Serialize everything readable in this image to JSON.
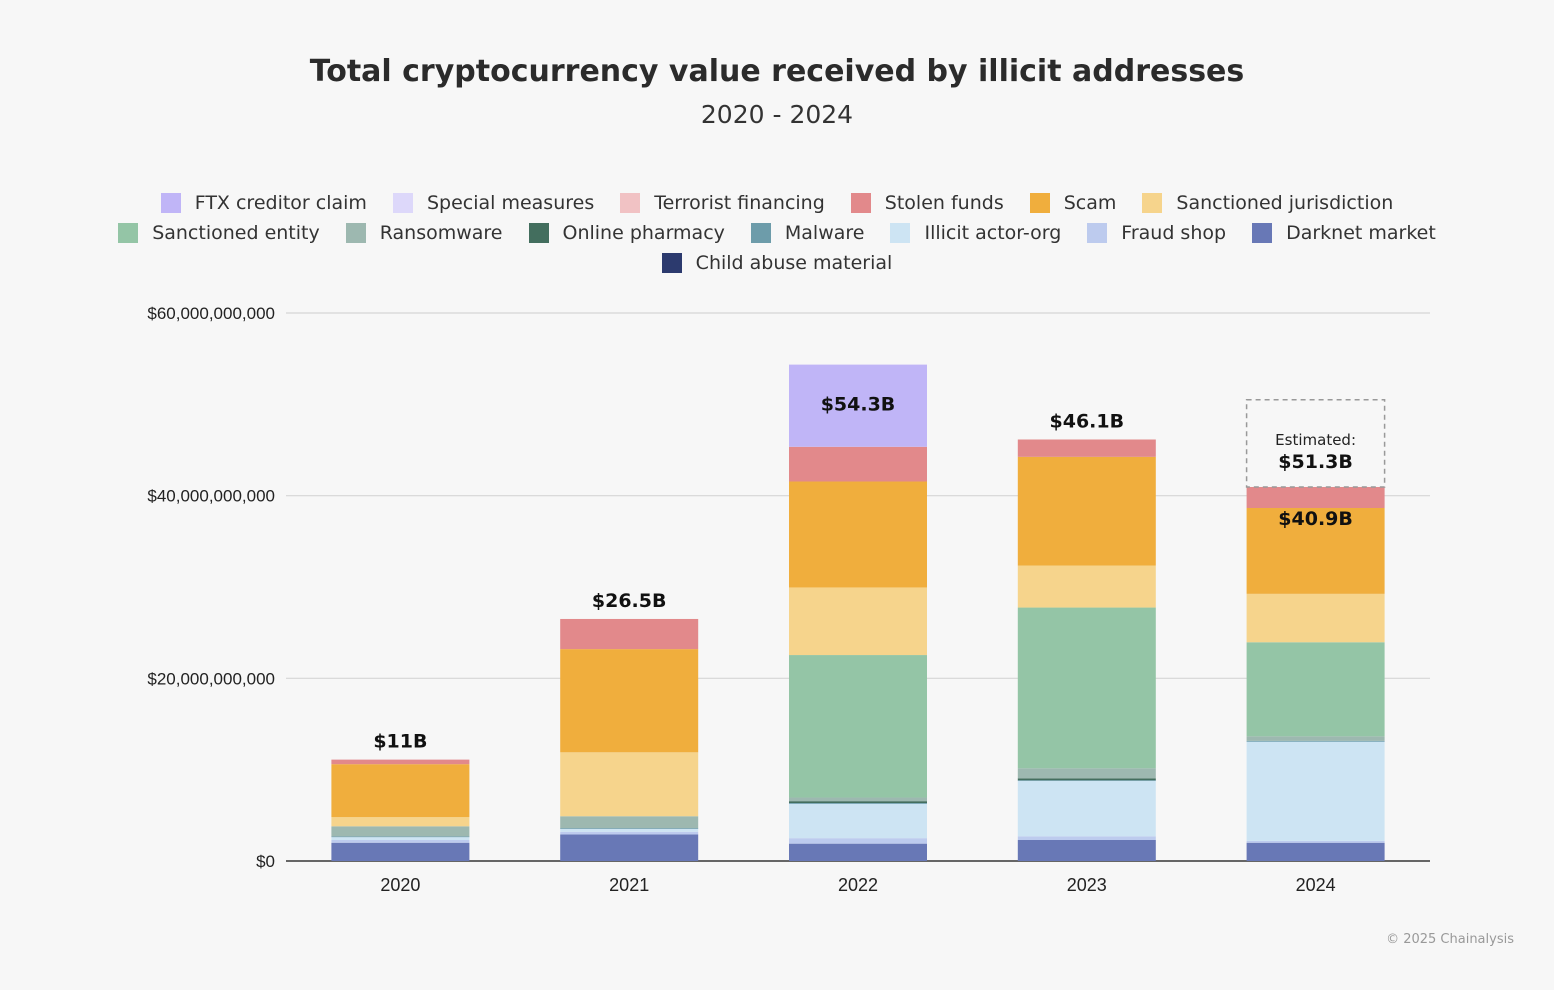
{
  "title": "Total cryptocurrency value received by illicit addresses",
  "subtitle": "2020 - 2024",
  "credit": "© 2025 Chainalysis",
  "chart_data": {
    "type": "bar",
    "stacked": true,
    "categories": [
      "2020",
      "2021",
      "2022",
      "2023",
      "2024"
    ],
    "ylim": [
      0,
      60000000000
    ],
    "yticks": [
      0,
      20000000000,
      40000000000,
      60000000000
    ],
    "ytick_labels": [
      "$0",
      "$20,000,000,000",
      "$40,000,000,000",
      "$60,000,000,000"
    ],
    "grid": true,
    "legend_position": "top",
    "series": [
      {
        "name": "Darknet market",
        "color": "#6878b6",
        "values": [
          2000000000.0,
          2900000000.0,
          1900000000.0,
          2300000000.0,
          2000000000.0
        ]
      },
      {
        "name": "Fraud shop",
        "color": "#bdcbee",
        "values": [
          300000000.0,
          300000000.0,
          600000000.0,
          400000000.0,
          200000000.0
        ]
      },
      {
        "name": "Illicit actor-org",
        "color": "#cde4f3",
        "values": [
          350000000.0,
          350000000.0,
          3800000000.0,
          6100000000.0,
          10900000000.0
        ]
      },
      {
        "name": "Malware",
        "color": "#6d9caa",
        "values": [
          50000000.0,
          50000000.0,
          50000000.0,
          50000000.0,
          50000000.0
        ]
      },
      {
        "name": "Online pharmacy",
        "color": "#436e5e",
        "values": [
          0,
          0,
          200000000.0,
          200000000.0,
          0
        ]
      },
      {
        "name": "Ransomware",
        "color": "#9db8b0",
        "values": [
          1100000000.0,
          1300000000.0,
          400000000.0,
          1100000000.0,
          500000000.0
        ]
      },
      {
        "name": "Sanctioned entity",
        "color": "#94c5a6",
        "values": [
          0,
          0,
          15600000000.0,
          17600000000.0,
          10300000000.0
        ]
      },
      {
        "name": "Sanctioned jurisdiction",
        "color": "#f6d48c",
        "values": [
          1000000000.0,
          7000000000.0,
          7400000000.0,
          4600000000.0,
          5300000000.0
        ]
      },
      {
        "name": "Scam",
        "color": "#f0ae3d",
        "values": [
          5800000000.0,
          11300000000.0,
          11600000000.0,
          11900000000.0,
          9400000000.0
        ]
      },
      {
        "name": "Stolen funds",
        "color": "#e2898b",
        "values": [
          500000000.0,
          3300000000.0,
          3800000000.0,
          1900000000.0,
          2300000000.0
        ]
      },
      {
        "name": "Terrorist financing",
        "color": "#f1c2c4",
        "values": [
          0,
          0,
          0,
          0,
          0
        ]
      },
      {
        "name": "Special measures",
        "color": "#ddd8fa",
        "values": [
          0,
          0,
          0,
          0,
          0
        ]
      },
      {
        "name": "FTX creditor claim",
        "color": "#c0b5f7",
        "values": [
          0,
          0,
          9000000000.0,
          0,
          0
        ]
      },
      {
        "name": "Child abuse material",
        "color": "#2c3a6e",
        "values": [
          0,
          0,
          0,
          0,
          0
        ]
      }
    ],
    "data_labels": [
      "$11B",
      "$26.5B",
      "$54.3B",
      "$46.1B",
      "$40.9B"
    ],
    "annotation": {
      "category": "2024",
      "label": "Estimated:",
      "value_label": "$51.3B",
      "value": 51300000000.0
    }
  },
  "legend": {
    "rows": [
      [
        {
          "name": "FTX creditor claim",
          "color": "#c0b5f7"
        },
        {
          "name": "Special measures",
          "color": "#ddd8fa"
        },
        {
          "name": "Terrorist financing",
          "color": "#f1c2c4"
        },
        {
          "name": "Stolen funds",
          "color": "#e2898b"
        },
        {
          "name": "Scam",
          "color": "#f0ae3d"
        },
        {
          "name": "Sanctioned jurisdiction",
          "color": "#f6d48c"
        }
      ],
      [
        {
          "name": "Sanctioned entity",
          "color": "#94c5a6"
        },
        {
          "name": "Ransomware",
          "color": "#9db8b0"
        },
        {
          "name": "Online pharmacy",
          "color": "#436e5e"
        },
        {
          "name": "Malware",
          "color": "#6d9caa"
        },
        {
          "name": "Illicit actor-org",
          "color": "#cde4f3"
        },
        {
          "name": "Fraud shop",
          "color": "#bdcbee"
        },
        {
          "name": "Darknet market",
          "color": "#6878b6"
        }
      ],
      [
        {
          "name": "Child abuse material",
          "color": "#2c3a6e"
        }
      ]
    ]
  }
}
